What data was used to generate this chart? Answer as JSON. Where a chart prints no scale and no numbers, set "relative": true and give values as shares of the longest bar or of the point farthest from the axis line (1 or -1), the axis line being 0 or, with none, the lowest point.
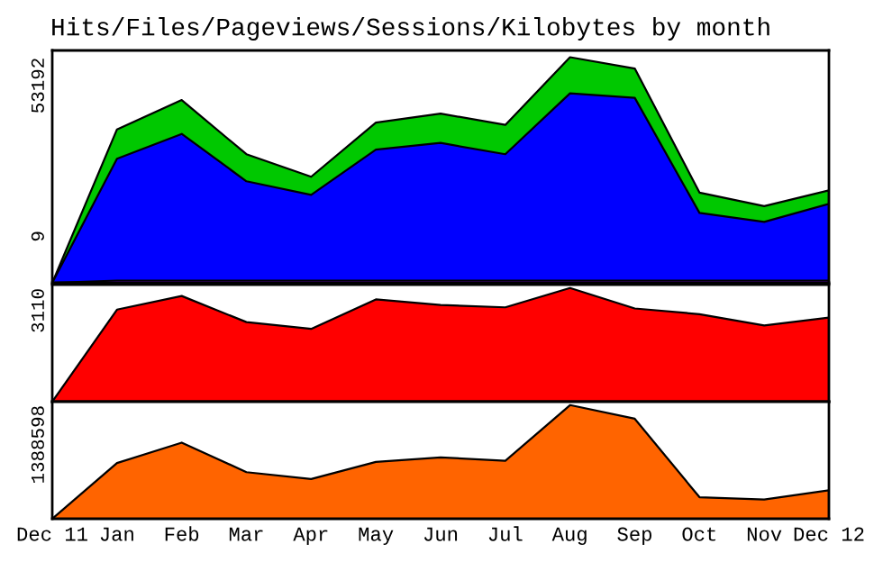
{
  "chart_data": [
    {
      "type": "area",
      "title": "Hits/Files/Pageviews/Sessions/Kilobytes by month",
      "relative": true,
      "tick_labels": false,
      "annotations": [
        "53192",
        "9"
      ],
      "series": [
        {
          "color": "#00c800",
          "values": [
            0,
            0.68,
            0.81,
            0.57,
            0.47,
            0.71,
            0.75,
            0.7,
            1,
            0.95,
            0.4,
            0.34,
            0.41
          ]
        },
        {
          "color": "#0000ff",
          "values": [
            0,
            0.55,
            0.66,
            0.45,
            0.39,
            0.59,
            0.62,
            0.57,
            0.84,
            0.82,
            0.31,
            0.27,
            0.35
          ]
        },
        {
          "color": "#8000ff",
          "values": [
            0,
            0.01,
            0.01,
            0.01,
            0.01,
            0.01,
            0.01,
            0.01,
            0.01,
            0.01,
            0.01,
            0.01,
            0.01
          ]
        }
      ]
    },
    {
      "type": "area",
      "relative": true,
      "tick_labels": false,
      "annotations": [
        "3110"
      ],
      "series": [
        {
          "color": "#ff0000",
          "values": [
            0,
            0.81,
            0.93,
            0.7,
            0.64,
            0.9,
            0.85,
            0.83,
            1,
            0.82,
            0.77,
            0.67,
            0.74
          ]
        }
      ]
    },
    {
      "type": "area",
      "relative": true,
      "tick_labels": "x",
      "annotations": [
        "1388598"
      ],
      "categories": [
        "Dec 11",
        "Jan",
        "Feb",
        "Mar",
        "Apr",
        "May",
        "Jun",
        "Jul",
        "Aug",
        "Sep",
        "Oct",
        "Nov",
        "Dec 12"
      ],
      "series": [
        {
          "color": "#ff6400",
          "values": [
            0,
            0.49,
            0.67,
            0.41,
            0.35,
            0.5,
            0.54,
            0.51,
            1,
            0.88,
            0.19,
            0.17,
            0.25
          ]
        }
      ]
    }
  ]
}
